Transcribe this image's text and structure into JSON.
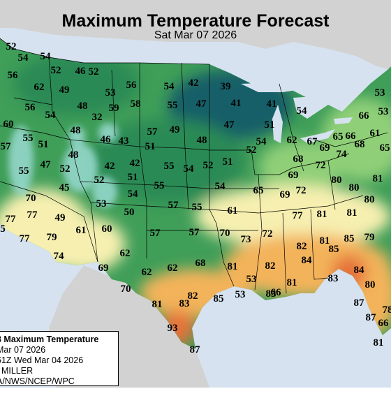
{
  "title": "Maximum Temperature Forecast",
  "subtitle": "Sat Mar 07 2026",
  "legend": {
    "line1": "3 Maximum Temperature",
    "line2": "Mar 07 2026",
    "line3": "51Z Wed Mar 04 2026",
    "line4": ": MILLER",
    "line5": "A/NWS/NCEP/WPC"
  },
  "colors": {
    "ocean": "#d6e2f0",
    "land_outside": "#d2d2d2",
    "t30s": "#175e67",
    "t40s": "#2b8a55",
    "t50s": "#3f9e58",
    "t60s": "#8fcf78",
    "t70s": "#f6efb0",
    "t80s": "#f3b35a",
    "t90s": "#e5723a",
    "mountain_cold": "#9adad2"
  },
  "temperature_labels": [
    {
      "id": "t1",
      "value": "52"
    },
    {
      "id": "t2",
      "value": "54"
    },
    {
      "id": "t3",
      "value": "54"
    },
    {
      "id": "t4",
      "value": "56"
    },
    {
      "id": "t5",
      "value": "52"
    },
    {
      "id": "t6",
      "value": "46"
    },
    {
      "id": "t7",
      "value": "52"
    },
    {
      "id": "t8",
      "value": "62"
    },
    {
      "id": "t9",
      "value": "49"
    },
    {
      "id": "t10",
      "value": "53"
    },
    {
      "id": "t11",
      "value": "56"
    },
    {
      "id": "t12",
      "value": "54"
    },
    {
      "id": "t13",
      "value": "42"
    },
    {
      "id": "t14",
      "value": "39"
    },
    {
      "id": "t15",
      "value": "56"
    },
    {
      "id": "t16",
      "value": "48"
    },
    {
      "id": "t17",
      "value": "59"
    },
    {
      "id": "t18",
      "value": "58"
    },
    {
      "id": "t19",
      "value": "55"
    },
    {
      "id": "t20",
      "value": "47"
    },
    {
      "id": "t21",
      "value": "41"
    },
    {
      "id": "t22",
      "value": "41"
    },
    {
      "id": "t23",
      "value": "54"
    },
    {
      "id": "t24",
      "value": "53"
    },
    {
      "id": "t25",
      "value": "60"
    },
    {
      "id": "t26",
      "value": "54"
    },
    {
      "id": "t27",
      "value": "32"
    },
    {
      "id": "t28",
      "value": "57"
    },
    {
      "id": "t29",
      "value": "49"
    },
    {
      "id": "t30",
      "value": "47"
    },
    {
      "id": "t31",
      "value": "51"
    },
    {
      "id": "t32",
      "value": "66"
    },
    {
      "id": "t33",
      "value": "53"
    },
    {
      "id": "t34",
      "value": "57"
    },
    {
      "id": "t35",
      "value": "55"
    },
    {
      "id": "t36",
      "value": "51"
    },
    {
      "id": "t37",
      "value": "48"
    },
    {
      "id": "t38",
      "value": "46"
    },
    {
      "id": "t39",
      "value": "43"
    },
    {
      "id": "t40",
      "value": "51"
    },
    {
      "id": "t41",
      "value": "48"
    },
    {
      "id": "t42",
      "value": "52"
    },
    {
      "id": "t43",
      "value": "54"
    },
    {
      "id": "t44",
      "value": "62"
    },
    {
      "id": "t45",
      "value": "67"
    },
    {
      "id": "t46",
      "value": "65"
    },
    {
      "id": "t47",
      "value": "66"
    },
    {
      "id": "t48",
      "value": "61"
    },
    {
      "id": "t49",
      "value": "65"
    },
    {
      "id": "t50",
      "value": "69"
    },
    {
      "id": "t51",
      "value": "68"
    },
    {
      "id": "t52",
      "value": "74"
    },
    {
      "id": "t53",
      "value": "68"
    },
    {
      "id": "t54",
      "value": "55"
    },
    {
      "id": "t55",
      "value": "47"
    },
    {
      "id": "t56",
      "value": "48"
    },
    {
      "id": "t57",
      "value": "52"
    },
    {
      "id": "t58",
      "value": "42"
    },
    {
      "id": "t59",
      "value": "42"
    },
    {
      "id": "t60",
      "value": "55"
    },
    {
      "id": "t61",
      "value": "54"
    },
    {
      "id": "t62",
      "value": "52"
    },
    {
      "id": "t63",
      "value": "51"
    },
    {
      "id": "t64",
      "value": "72"
    },
    {
      "id": "t65",
      "value": "81"
    },
    {
      "id": "t66",
      "value": "45"
    },
    {
      "id": "t67",
      "value": "52"
    },
    {
      "id": "t68",
      "value": "51"
    },
    {
      "id": "t69",
      "value": "55"
    },
    {
      "id": "t70",
      "value": "54"
    },
    {
      "id": "t71",
      "value": "69"
    },
    {
      "id": "t72",
      "value": "80"
    },
    {
      "id": "t73",
      "value": "80"
    },
    {
      "id": "t74",
      "value": "65"
    },
    {
      "id": "t75",
      "value": "69"
    },
    {
      "id": "t76",
      "value": "72"
    },
    {
      "id": "t77",
      "value": "70"
    },
    {
      "id": "t78",
      "value": "54"
    },
    {
      "id": "t79",
      "value": "53"
    },
    {
      "id": "t80",
      "value": "57"
    },
    {
      "id": "t81",
      "value": "55"
    },
    {
      "id": "t82",
      "value": "61"
    },
    {
      "id": "t83",
      "value": "77"
    },
    {
      "id": "t84",
      "value": "81"
    },
    {
      "id": "t85",
      "value": "81"
    },
    {
      "id": "t86",
      "value": "80"
    },
    {
      "id": "t87",
      "value": "77"
    },
    {
      "id": "t88",
      "value": "77"
    },
    {
      "id": "t89",
      "value": "49"
    },
    {
      "id": "t90",
      "value": "50"
    },
    {
      "id": "t91",
      "value": "5"
    },
    {
      "id": "t92",
      "value": "61"
    },
    {
      "id": "t93",
      "value": "60"
    },
    {
      "id": "t94",
      "value": "57"
    },
    {
      "id": "t95",
      "value": "57"
    },
    {
      "id": "t96",
      "value": "70"
    },
    {
      "id": "t97",
      "value": "73"
    },
    {
      "id": "t98",
      "value": "72"
    },
    {
      "id": "t99",
      "value": "81"
    },
    {
      "id": "t100",
      "value": "85"
    },
    {
      "id": "t101",
      "value": "79"
    },
    {
      "id": "t102",
      "value": "77"
    },
    {
      "id": "t103",
      "value": "79"
    },
    {
      "id": "t104",
      "value": "82"
    },
    {
      "id": "t105",
      "value": "74"
    },
    {
      "id": "t106",
      "value": "62"
    },
    {
      "id": "t107",
      "value": "85"
    },
    {
      "id": "t108",
      "value": "68"
    },
    {
      "id": "t109",
      "value": "69"
    },
    {
      "id": "t110",
      "value": "62"
    },
    {
      "id": "t111",
      "value": "62"
    },
    {
      "id": "t112",
      "value": "81"
    },
    {
      "id": "t113",
      "value": "82"
    },
    {
      "id": "t114",
      "value": "84"
    },
    {
      "id": "t115",
      "value": "84"
    },
    {
      "id": "t116",
      "value": "70"
    },
    {
      "id": "t117",
      "value": "82"
    },
    {
      "id": "t118",
      "value": "85"
    },
    {
      "id": "t119",
      "value": "83"
    },
    {
      "id": "t120",
      "value": "81"
    },
    {
      "id": "t121",
      "value": "83"
    },
    {
      "id": "t122",
      "value": "80"
    },
    {
      "id": "t123",
      "value": "81"
    },
    {
      "id": "t124",
      "value": "83"
    },
    {
      "id": "t125",
      "value": "87"
    },
    {
      "id": "t126",
      "value": "93"
    },
    {
      "id": "t127",
      "value": "87"
    },
    {
      "id": "t128",
      "value": "87"
    },
    {
      "id": "t129",
      "value": "81"
    },
    {
      "id": "t130",
      "value": "53"
    },
    {
      "id": "t131",
      "value": "53"
    },
    {
      "id": "t132",
      "value": "66"
    },
    {
      "id": "t133",
      "value": "66"
    },
    {
      "id": "t134",
      "value": "78"
    },
    {
      "id": "t135",
      "value": "81"
    },
    {
      "id": "t136",
      "value": "80"
    },
    {
      "id": "t137",
      "value": "84"
    },
    {
      "id": "t138",
      "value": "8"
    }
  ]
}
